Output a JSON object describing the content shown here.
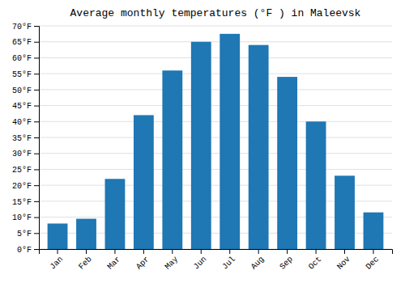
{
  "chart_data": {
    "type": "bar",
    "title": "Average monthly temperatures (°F ) in Maleevsk",
    "categories": [
      "Jan",
      "Feb",
      "Mar",
      "Apr",
      "May",
      "Jun",
      "Jul",
      "Aug",
      "Sep",
      "Oct",
      "Nov",
      "Dec"
    ],
    "values": [
      8,
      9.5,
      22,
      42,
      56,
      65,
      67.5,
      64,
      54,
      40,
      23,
      11.5
    ],
    "ylim": [
      0,
      70
    ],
    "yticks": [
      {
        "value": 0,
        "label": "0°F"
      },
      {
        "value": 5,
        "label": "5°F"
      },
      {
        "value": 10,
        "label": "10°F"
      },
      {
        "value": 15,
        "label": "15°F"
      },
      {
        "value": 20,
        "label": "20°F"
      },
      {
        "value": 25,
        "label": "25°F"
      },
      {
        "value": 30,
        "label": "30°F"
      },
      {
        "value": 35,
        "label": "35°F"
      },
      {
        "value": 40,
        "label": "40°F"
      },
      {
        "value": 45,
        "label": "45°F"
      },
      {
        "value": 50,
        "label": "50°F"
      },
      {
        "value": 55,
        "label": "55°F"
      },
      {
        "value": 60,
        "label": "60°F"
      },
      {
        "value": 65,
        "label": "65°F"
      },
      {
        "value": 70,
        "label": "70°F"
      }
    ],
    "grid": true
  }
}
